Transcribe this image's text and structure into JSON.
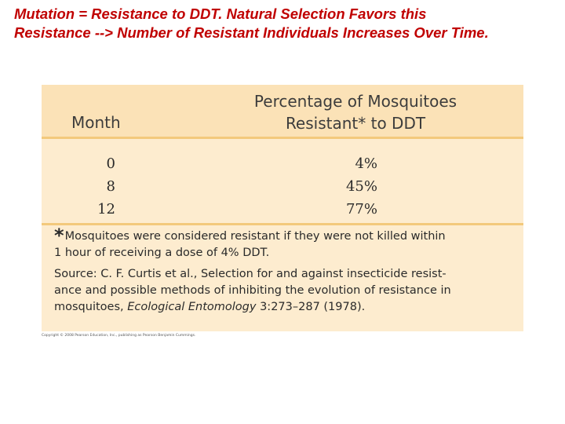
{
  "slide": {
    "title_line1": "Mutation = Resistance to DDT.  Natural Selection Favors this",
    "title_line2": "Resistance --> Number of Resistant Individuals Increases Over Time."
  },
  "table": {
    "headers": {
      "month": "Month",
      "percentage_line1": "Percentage of Mosquitoes",
      "percentage_line2": "Resistant* to DDT"
    },
    "rows": [
      {
        "month": "0",
        "percent": "4%"
      },
      {
        "month": "8",
        "percent": "45%"
      },
      {
        "month": "12",
        "percent": "77%"
      }
    ],
    "footnote": {
      "asterisk": "*",
      "note_line1": "Mosquitoes were considered resistant if they were not killed within",
      "note_line2": "1 hour of receiving a dose of 4% DDT.",
      "source_line1": "Source: C. F. Curtis et al., Selection for and against insecticide resist-",
      "source_line2": "ance and possible methods of inhibiting the evolution of resistance in",
      "source_line3_prefix": "mosquitoes, ",
      "source_journal": "Ecological Entomology",
      "source_line3_suffix": " 3:273–287 (1978)."
    }
  },
  "copyright": "Copyright © 2008 Pearson Education, Inc., publishing as Pearson Benjamin Cummings."
}
